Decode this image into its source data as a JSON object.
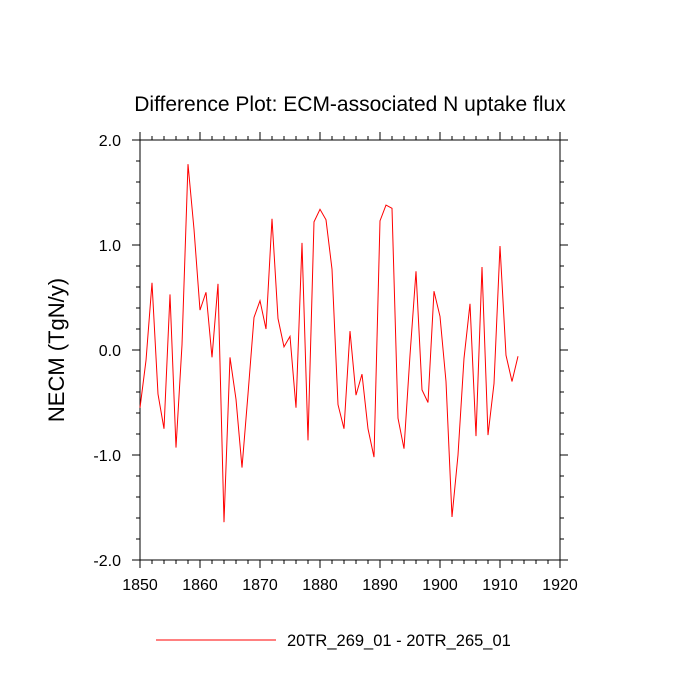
{
  "chart_data": {
    "type": "line",
    "title": "Difference Plot: ECM-associated N uptake flux",
    "xlabel": "",
    "ylabel": "NECM  (TgN/y)",
    "xlim": [
      1850,
      1920
    ],
    "ylim": [
      -2.0,
      2.0
    ],
    "x_ticks": [
      1850,
      1860,
      1870,
      1880,
      1890,
      1900,
      1910,
      1920
    ],
    "x_tick_labels": [
      "1850",
      "1860",
      "1870",
      "1880",
      "1890",
      "1900",
      "1910",
      "1920"
    ],
    "y_ticks": [
      -2.0,
      -1.0,
      0.0,
      1.0,
      2.0
    ],
    "y_tick_labels": [
      "-2.0",
      "-1.0",
      "0.0",
      "1.0",
      "2.0"
    ],
    "grid": false,
    "legend_position": "bottom-center",
    "series": [
      {
        "name": "20TR_269_01 - 20TR_265_01",
        "color": "#ff0000",
        "x": [
          1850,
          1851,
          1852,
          1853,
          1854,
          1855,
          1856,
          1857,
          1858,
          1859,
          1860,
          1861,
          1862,
          1863,
          1864,
          1865,
          1866,
          1867,
          1868,
          1869,
          1870,
          1871,
          1872,
          1873,
          1874,
          1875,
          1876,
          1877,
          1878,
          1879,
          1880,
          1881,
          1882,
          1883,
          1884,
          1885,
          1886,
          1887,
          1888,
          1889,
          1890,
          1891,
          1892,
          1893,
          1894,
          1895,
          1896,
          1897,
          1898,
          1899,
          1900,
          1901,
          1902,
          1903,
          1904,
          1905,
          1906,
          1907,
          1908,
          1909,
          1910,
          1911,
          1912,
          1913
        ],
        "values": [
          -0.55,
          -0.1,
          0.64,
          -0.42,
          -0.75,
          0.53,
          -0.93,
          0.05,
          1.77,
          1.15,
          0.38,
          0.55,
          -0.07,
          0.63,
          -1.64,
          -0.07,
          -0.47,
          -1.12,
          -0.42,
          0.31,
          0.47,
          0.2,
          1.25,
          0.3,
          0.03,
          0.13,
          -0.55,
          1.02,
          -0.86,
          1.22,
          1.34,
          1.24,
          0.77,
          -0.52,
          -0.75,
          0.18,
          -0.43,
          -0.23,
          -0.75,
          -1.02,
          1.23,
          1.38,
          1.35,
          -0.65,
          -0.94,
          -0.05,
          0.75,
          -0.38,
          -0.5,
          0.56,
          0.32,
          -0.3,
          -1.59,
          -1.0,
          -0.08,
          0.44,
          -0.82,
          0.79,
          -0.81,
          -0.32,
          0.99,
          -0.05,
          -0.3,
          -0.06
        ]
      }
    ]
  }
}
